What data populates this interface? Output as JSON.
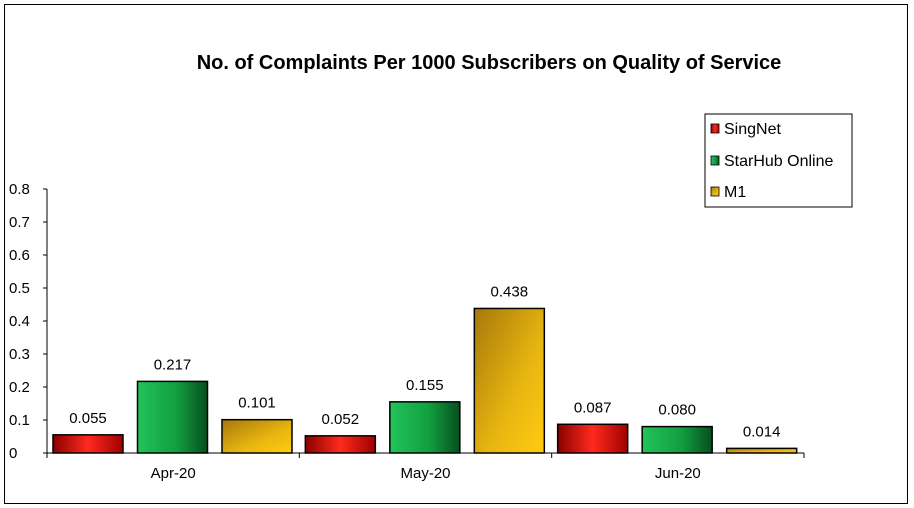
{
  "chart_data": {
    "type": "bar",
    "title": "No. of Complaints Per 1000 Subscribers on Quality of Service",
    "categories": [
      "Apr-20",
      "May-20",
      "Jun-20"
    ],
    "series": [
      {
        "name": "SingNet",
        "values": [
          0.055,
          0.052,
          0.087
        ],
        "labels": [
          "0.055",
          "0.052",
          "0.087"
        ],
        "color": "#e8120c"
      },
      {
        "name": "StarHub Online",
        "values": [
          0.217,
          0.155,
          0.08
        ],
        "labels": [
          "0.217",
          "0.155",
          "0.080"
        ],
        "color": "#1aa54a"
      },
      {
        "name": "M1",
        "values": [
          0.101,
          0.438,
          0.014
        ],
        "labels": [
          "0.101",
          "0.438",
          "0.014"
        ],
        "color": "#e6b012"
      }
    ],
    "yticks": [
      "0",
      "0.1",
      "0.2",
      "0.3",
      "0.4",
      "0.5",
      "0.6",
      "0.7",
      "0.8"
    ],
    "ylim": [
      0,
      0.8
    ],
    "xlabel": "",
    "ylabel": "",
    "grid": false,
    "legend_position": "top-right"
  }
}
